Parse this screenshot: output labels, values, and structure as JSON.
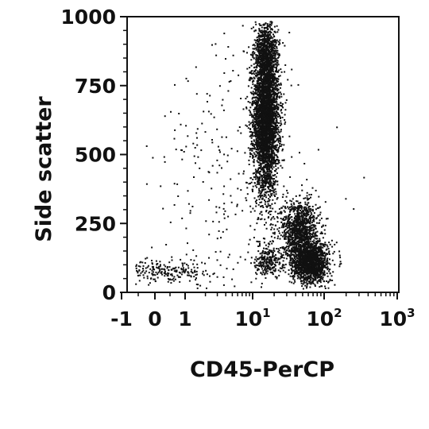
{
  "chart_data": {
    "type": "scatter",
    "title": "",
    "xlabel": "CD45-PerCP",
    "ylabel": "Side scatter",
    "x_scale": "biexponential",
    "xlim": [
      -1,
      1000
    ],
    "ylim": [
      0,
      1000
    ],
    "grid": false,
    "legend": "none",
    "x_ticks": [
      {
        "value": -1,
        "base": "-1",
        "exp": ""
      },
      {
        "value": 0,
        "base": "0",
        "exp": ""
      },
      {
        "value": 1,
        "base": "1",
        "exp": ""
      },
      {
        "value": 10,
        "base": "10",
        "exp": "1"
      },
      {
        "value": 100,
        "base": "10",
        "exp": "2"
      },
      {
        "value": 1000,
        "base": "10",
        "exp": "3"
      }
    ],
    "y_ticks": [
      {
        "value": 0,
        "label": "0"
      },
      {
        "value": 250,
        "label": "250"
      },
      {
        "value": 500,
        "label": "500"
      },
      {
        "value": 750,
        "label": "750"
      },
      {
        "value": 1000,
        "label": "1000"
      }
    ],
    "populations": [
      {
        "x_center": 15,
        "y_center": 640,
        "x_spread_log": 0.09,
        "y_spread": 140,
        "count": 3800
      },
      {
        "x_center": 15,
        "y_center": 880,
        "x_spread_log": 0.08,
        "y_spread": 50,
        "count": 500
      },
      {
        "x_center": 45,
        "y_center": 230,
        "x_spread_log": 0.13,
        "y_spread": 55,
        "count": 1100
      },
      {
        "x_center": 62,
        "y_center": 110,
        "x_spread_log": 0.13,
        "y_spread": 38,
        "count": 1500
      },
      {
        "x_center": 16,
        "y_center": 120,
        "x_spread_log": 0.1,
        "y_spread": 30,
        "count": 260
      },
      {
        "x_center": 0.3,
        "y_center": 80,
        "x_spread_log": 0.2,
        "y_spread": 22,
        "count": 260
      },
      {
        "x_center": 5,
        "y_center": 400,
        "x_spread_log": 0.6,
        "y_spread": 260,
        "count": 260
      }
    ],
    "color": "#111111"
  }
}
